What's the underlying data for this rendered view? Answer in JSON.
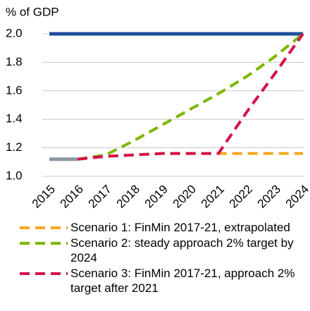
{
  "chart_data": {
    "type": "line",
    "ylabel": "% of GDP",
    "categories": [
      "2015",
      "2016",
      "2017",
      "2018",
      "2019",
      "2020",
      "2021",
      "2022",
      "2023",
      "2024"
    ],
    "ylim": [
      1.0,
      2.0
    ],
    "yticks": [
      {
        "value": 1.0,
        "label": "1.0"
      },
      1.2,
      1.4,
      1.6,
      1.8,
      {
        "value": 2.0,
        "label": "2.0"
      }
    ],
    "grid": true,
    "series": [
      {
        "color": "#1f4e9c",
        "dash": false,
        "values": [
          2.0,
          2.0,
          2.0,
          2.0,
          2.0,
          2.0,
          2.0,
          2.0,
          2.0,
          2.0
        ]
      },
      {
        "name": "Scenario 1: FinMin 2017-21, extrapolated",
        "color": "#f5a623",
        "dash": true,
        "values": [
          null,
          1.12,
          1.14,
          1.15,
          1.16,
          1.16,
          1.16,
          1.16,
          1.16,
          1.16
        ]
      },
      {
        "name": "Scenario 2: steady approach 2% target by 2024",
        "color": "#7ab800",
        "dash": true,
        "values": [
          null,
          1.12,
          1.15,
          1.25,
          1.36,
          1.47,
          1.58,
          1.7,
          1.84,
          2.0
        ]
      },
      {
        "name": "Scenario 3: FinMin 2017-21, approach 2% target after 2021",
        "color": "#d6104a",
        "dash": true,
        "values": [
          null,
          1.12,
          1.14,
          1.15,
          1.16,
          1.16,
          1.16,
          1.45,
          1.72,
          2.0
        ]
      },
      {
        "color": "#8c96a0",
        "dash": false,
        "values": [
          1.12,
          1.12,
          null,
          null,
          null,
          null,
          null,
          null,
          null,
          null
        ]
      }
    ]
  }
}
